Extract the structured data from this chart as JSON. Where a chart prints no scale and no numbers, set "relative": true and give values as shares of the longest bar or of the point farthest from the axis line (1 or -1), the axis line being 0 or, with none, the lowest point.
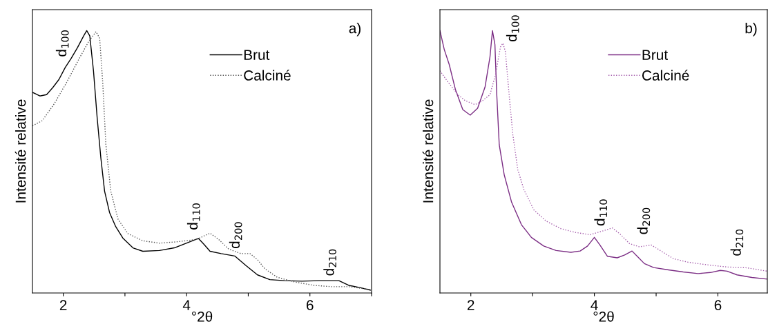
{
  "chart_data": [
    {
      "type": "line",
      "relative": true,
      "xlabel": "°2θ",
      "ylabel": "Intensité relative",
      "xlim": [
        1.5,
        7
      ],
      "xticks": [
        2,
        {
          "value": 3,
          "label": null
        },
        4,
        {
          "value": 5,
          "label": null
        },
        6,
        {
          "value": 7,
          "label": null
        }
      ],
      "legend": "top right",
      "grid": false,
      "marker": "none",
      "series": [
        {
          "name": "Brut",
          "color": "#000000",
          "line_style": "solid",
          "x": [
            1.5,
            1.62,
            1.73,
            1.83,
            1.93,
            2.03,
            2.13,
            2.23,
            2.33,
            2.38,
            2.43,
            2.49,
            2.55,
            2.61,
            2.67,
            2.75,
            2.85,
            2.97,
            3.13,
            3.29,
            3.56,
            3.8,
            4.0,
            4.19,
            4.28,
            4.38,
            4.56,
            4.78,
            4.96,
            5.15,
            5.35,
            5.59,
            5.87,
            6.15,
            6.47,
            6.63,
            6.82,
            6.98
          ],
          "values": [
            0.765,
            0.751,
            0.756,
            0.783,
            0.814,
            0.859,
            0.895,
            0.935,
            0.98,
            1.0,
            0.98,
            0.846,
            0.666,
            0.513,
            0.388,
            0.307,
            0.253,
            0.208,
            0.172,
            0.159,
            0.162,
            0.172,
            0.19,
            0.208,
            0.186,
            0.159,
            0.15,
            0.141,
            0.105,
            0.069,
            0.051,
            0.047,
            0.045,
            0.047,
            0.047,
            0.029,
            0.02,
            0.011
          ]
        },
        {
          "name": "Calciné",
          "color": "#555555",
          "line_style": "dotted",
          "x": [
            1.5,
            1.66,
            1.85,
            2.05,
            2.25,
            2.41,
            2.53,
            2.59,
            2.64,
            2.69,
            2.77,
            2.89,
            3.05,
            3.29,
            3.56,
            3.84,
            4.16,
            4.38,
            4.52,
            4.68,
            4.88,
            5.03,
            5.15,
            5.27,
            5.47,
            5.75,
            6.07,
            6.35,
            6.63,
            6.98
          ],
          "values": [
            0.637,
            0.657,
            0.72,
            0.801,
            0.89,
            0.958,
            0.996,
            0.971,
            0.801,
            0.567,
            0.388,
            0.28,
            0.226,
            0.199,
            0.19,
            0.195,
            0.204,
            0.228,
            0.204,
            0.168,
            0.15,
            0.15,
            0.127,
            0.092,
            0.06,
            0.042,
            0.029,
            0.024,
            0.024,
            0.013
          ]
        }
      ],
      "annotations": [
        "d$_{100}$",
        "d$_{110}$",
        "d$_{200}$",
        "d$_{210}$",
        "a)"
      ]
    },
    {
      "type": "line",
      "relative": true,
      "xlabel": "°2θ",
      "ylabel": "Intensité relative",
      "xlim": [
        1.5,
        6.8
      ],
      "xticks": [
        2,
        {
          "value": 3,
          "label": null
        },
        4,
        {
          "value": 5,
          "label": null
        },
        6
      ],
      "legend": "top right",
      "grid": false,
      "marker": "none",
      "series": [
        {
          "name": "Brut",
          "color": "#7b2d84",
          "line_style": "solid",
          "x": [
            1.5,
            1.57,
            1.65,
            1.75,
            1.87,
            1.99,
            2.11,
            2.23,
            2.31,
            2.35,
            2.39,
            2.42,
            2.46,
            2.54,
            2.66,
            2.82,
            2.98,
            3.18,
            3.38,
            3.62,
            3.77,
            3.89,
            4.0,
            4.09,
            4.21,
            4.37,
            4.49,
            4.61,
            4.71,
            4.81,
            4.96,
            5.2,
            5.44,
            5.68,
            5.88,
            6.04,
            6.15,
            6.31,
            6.55,
            6.8
          ],
          "values": [
            1.0,
            0.928,
            0.871,
            0.776,
            0.699,
            0.678,
            0.704,
            0.785,
            0.9,
            1.0,
            0.947,
            0.756,
            0.565,
            0.451,
            0.346,
            0.26,
            0.212,
            0.179,
            0.162,
            0.155,
            0.16,
            0.179,
            0.212,
            0.183,
            0.14,
            0.134,
            0.145,
            0.16,
            0.136,
            0.112,
            0.097,
            0.088,
            0.08,
            0.074,
            0.078,
            0.086,
            0.083,
            0.069,
            0.059,
            0.053
          ]
        },
        {
          "name": "Calciné",
          "color": "#a660ad",
          "line_style": "dotted",
          "x": [
            1.5,
            1.63,
            1.79,
            1.91,
            2.07,
            2.19,
            2.31,
            2.4,
            2.48,
            2.52,
            2.56,
            2.62,
            2.68,
            2.76,
            2.86,
            3.02,
            3.22,
            3.46,
            3.69,
            3.93,
            4.13,
            4.29,
            4.41,
            4.57,
            4.73,
            4.92,
            5.08,
            5.28,
            5.52,
            5.84,
            6.15,
            6.47,
            6.8
          ],
          "values": [
            0.847,
            0.804,
            0.756,
            0.733,
            0.718,
            0.733,
            0.756,
            0.833,
            0.938,
            0.952,
            0.919,
            0.756,
            0.604,
            0.47,
            0.394,
            0.317,
            0.274,
            0.245,
            0.231,
            0.222,
            0.236,
            0.248,
            0.226,
            0.188,
            0.176,
            0.183,
            0.16,
            0.131,
            0.117,
            0.107,
            0.099,
            0.096,
            0.083
          ]
        }
      ],
      "annotations": [
        "d$_{100}$",
        "d$_{110}$",
        "d$_{200}$",
        "d$_{210}$",
        "b)"
      ]
    }
  ]
}
